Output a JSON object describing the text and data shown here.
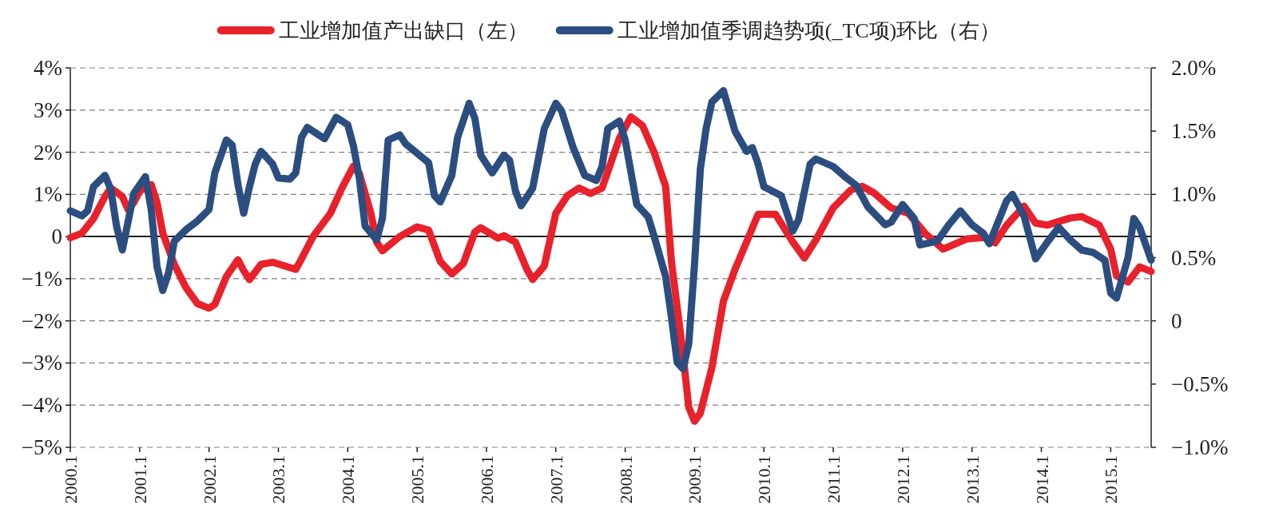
{
  "chart_data": {
    "type": "line",
    "legend": "top",
    "grid": "y",
    "line_style": "solid",
    "marker": "none",
    "xlim": [
      "2000-01",
      "2015-08"
    ],
    "xticks": [
      {
        "value": "2000-01",
        "label": "2000.1"
      },
      {
        "value": "2001-01",
        "label": "2001.1"
      },
      {
        "value": "2002-01",
        "label": "2002.1"
      },
      {
        "value": "2003-01",
        "label": "2003.1"
      },
      {
        "value": "2004-01",
        "label": "2004.1"
      },
      {
        "value": "2005-01",
        "label": "2005.1"
      },
      {
        "value": "2006-01",
        "label": "2006.1"
      },
      {
        "value": "2007-01",
        "label": "2007.1"
      },
      {
        "value": "2008-01",
        "label": "2008.1"
      },
      {
        "value": "2009-01",
        "label": "2009.1"
      },
      {
        "value": "2010-01",
        "label": "2010.1"
      },
      {
        "value": "2011-01",
        "label": "2011.1"
      },
      {
        "value": "2012-01",
        "label": "2012.1"
      },
      {
        "value": "2013-01",
        "label": "2013.1"
      },
      {
        "value": "2014-01",
        "label": "2014.1"
      },
      {
        "value": "2015-01",
        "label": "2015.1"
      }
    ],
    "ylim": [
      -5,
      4
    ],
    "yticks": [
      {
        "value": -5,
        "label": "−5%"
      },
      {
        "value": -4,
        "label": "−4%"
      },
      {
        "value": -3,
        "label": "−3%"
      },
      {
        "value": -2,
        "label": "−2%"
      },
      {
        "value": -1,
        "label": "−1%"
      },
      {
        "value": 0,
        "label": "0"
      },
      {
        "value": 1,
        "label": "1%"
      },
      {
        "value": 2,
        "label": "2%"
      },
      {
        "value": 3,
        "label": "3%"
      },
      {
        "value": 4,
        "label": "4%"
      }
    ],
    "y2lim": [
      -1,
      2
    ],
    "y2ticks": [
      {
        "value": -1,
        "label": "−1.0%"
      },
      {
        "value": -0.5,
        "label": "−0.5%"
      },
      {
        "value": 0,
        "label": "0"
      },
      {
        "value": 0.5,
        "label": "0.5%"
      },
      {
        "value": 1,
        "label": "1.0%"
      },
      {
        "value": 1.5,
        "label": "1.5%"
      },
      {
        "value": 2,
        "label": "2.0%"
      }
    ],
    "ref_lines": [
      {
        "axis": "y",
        "value": 0,
        "color": "#231f20",
        "line_style": "solid"
      }
    ],
    "series": [
      {
        "name": "工业增加值产出缺口（左）",
        "color": "#e8212b",
        "x": [
          "2000-01",
          "2000-03",
          "2000-05",
          "2000-07",
          "2000-08",
          "2000-10",
          "2000-11",
          "2000-12",
          "2001-01",
          "2001-03",
          "2001-04",
          "2001-05",
          "2001-07",
          "2001-09",
          "2001-11",
          "2002-01",
          "2002-02",
          "2002-04",
          "2002-06",
          "2002-07",
          "2002-08",
          "2002-10",
          "2002-12",
          "2003-04",
          "2003-05",
          "2003-07",
          "2003-10",
          "2003-12",
          "2004-02",
          "2004-03",
          "2004-05",
          "2004-06",
          "2004-07",
          "2004-10",
          "2005-01",
          "2005-03",
          "2005-05",
          "2005-07",
          "2005-09",
          "2005-11",
          "2005-12",
          "2006-03",
          "2006-04",
          "2006-06",
          "2006-08",
          "2006-09",
          "2006-11",
          "2007-01",
          "2007-03",
          "2007-05",
          "2007-07",
          "2007-09",
          "2007-12",
          "2008-02",
          "2008-04",
          "2008-06",
          "2008-08",
          "2008-09",
          "2008-11",
          "2008-12",
          "2009-01",
          "2009-02",
          "2009-04",
          "2009-06",
          "2009-08",
          "2009-10",
          "2009-12",
          "2010-03",
          "2010-06",
          "2010-08",
          "2010-10",
          "2011-01",
          "2011-04",
          "2011-06",
          "2011-08",
          "2011-11",
          "2012-02",
          "2012-05",
          "2012-08",
          "2012-12",
          "2013-03",
          "2013-05",
          "2013-07",
          "2013-10",
          "2013-12",
          "2014-02",
          "2014-06",
          "2014-08",
          "2014-11",
          "2015-01",
          "2015-02",
          "2015-04",
          "2015-06",
          "2015-08"
        ],
        "values": [
          -0.03,
          0.08,
          0.42,
          0.95,
          1.15,
          0.95,
          0.64,
          0.81,
          1.08,
          1.23,
          0.81,
          0.08,
          -0.66,
          -1.21,
          -1.59,
          -1.7,
          -1.61,
          -0.95,
          -0.55,
          -0.81,
          -1.02,
          -0.66,
          -0.61,
          -0.78,
          -0.53,
          0,
          0.55,
          1.15,
          1.67,
          1.5,
          0.55,
          -0.13,
          -0.34,
          0,
          0.23,
          0.15,
          -0.59,
          -0.89,
          -0.64,
          0.11,
          0.21,
          -0.04,
          0.02,
          -0.13,
          -0.78,
          -1.02,
          -0.7,
          0.55,
          0.97,
          1.15,
          1.02,
          1.15,
          2.33,
          2.84,
          2.63,
          2.0,
          1.19,
          -0.59,
          -2.78,
          -4.05,
          -4.38,
          -4.19,
          -3.11,
          -1.53,
          -0.78,
          -0.13,
          0.53,
          0.53,
          -0.13,
          -0.51,
          -0.08,
          0.68,
          1.1,
          1.19,
          1.04,
          0.68,
          0.55,
          0.06,
          -0.3,
          -0.06,
          -0.02,
          -0.15,
          0.27,
          0.72,
          0.32,
          0.27,
          0.44,
          0.47,
          0.27,
          -0.3,
          -0.93,
          -1.08,
          -0.72,
          -0.83
        ]
      },
      {
        "name": "工业增加值季调趋势项(_TC项)环比（右）",
        "color": "#2c4d80",
        "axis": "y2",
        "x": [
          "2000-01",
          "2000-03",
          "2000-04",
          "2000-05",
          "2000-07",
          "2000-08",
          "2000-09",
          "2000-10",
          "2000-12",
          "2001-02",
          "2001-03",
          "2001-04",
          "2001-05",
          "2001-06",
          "2001-07",
          "2001-09",
          "2001-11",
          "2002-01",
          "2002-02",
          "2002-04",
          "2002-05",
          "2002-06",
          "2002-07",
          "2002-08",
          "2002-09",
          "2002-10",
          "2002-12",
          "2003-01",
          "2003-03",
          "2003-04",
          "2003-05",
          "2003-06",
          "2003-09",
          "2003-11",
          "2004-01",
          "2004-02",
          "2004-03",
          "2004-04",
          "2004-06",
          "2004-07",
          "2004-08",
          "2004-10",
          "2004-11",
          "2005-03",
          "2005-04",
          "2005-05",
          "2005-07",
          "2005-08",
          "2005-10",
          "2005-11",
          "2005-12",
          "2006-02",
          "2006-04",
          "2006-05",
          "2006-06",
          "2006-07",
          "2006-09",
          "2006-11",
          "2007-01",
          "2007-02",
          "2007-04",
          "2007-06",
          "2007-08",
          "2007-09",
          "2007-10",
          "2007-12",
          "2008-01",
          "2008-03",
          "2008-05",
          "2008-06",
          "2008-08",
          "2008-09",
          "2008-10",
          "2008-11",
          "2008-12",
          "2009-01",
          "2009-02",
          "2009-03",
          "2009-04",
          "2009-06",
          "2009-07",
          "2009-08",
          "2009-10",
          "2009-11",
          "2009-12",
          "2010-01",
          "2010-04",
          "2010-06",
          "2010-07",
          "2010-09",
          "2010-10",
          "2011-01",
          "2011-03",
          "2011-05",
          "2011-07",
          "2011-10",
          "2011-11",
          "2012-01",
          "2012-03",
          "2012-04",
          "2012-07",
          "2012-09",
          "2012-11",
          "2013-01",
          "2013-03",
          "2013-04",
          "2013-07",
          "2013-08",
          "2013-10",
          "2013-12",
          "2014-02",
          "2014-04",
          "2014-06",
          "2014-08",
          "2014-10",
          "2014-12",
          "2015-01",
          "2015-02",
          "2015-04",
          "2015-05",
          "2015-06",
          "2015-08"
        ],
        "values": [
          0.87,
          0.83,
          0.87,
          1.06,
          1.15,
          1.04,
          0.75,
          0.56,
          1.01,
          1.14,
          0.88,
          0.43,
          0.24,
          0.38,
          0.63,
          0.72,
          0.79,
          0.88,
          1.17,
          1.43,
          1.39,
          1.08,
          0.85,
          1.06,
          1.24,
          1.34,
          1.24,
          1.13,
          1.12,
          1.17,
          1.45,
          1.53,
          1.44,
          1.61,
          1.55,
          1.38,
          1.13,
          0.75,
          0.64,
          0.81,
          1.43,
          1.47,
          1.4,
          1.25,
          0.99,
          0.94,
          1.15,
          1.45,
          1.72,
          1.6,
          1.31,
          1.17,
          1.31,
          1.27,
          1.03,
          0.91,
          1.05,
          1.52,
          1.72,
          1.66,
          1.37,
          1.15,
          1.11,
          1.22,
          1.52,
          1.58,
          1.43,
          0.92,
          0.82,
          0.67,
          0.35,
          0.03,
          -0.33,
          -0.38,
          -0.18,
          0.45,
          1.2,
          1.52,
          1.73,
          1.82,
          1.66,
          1.5,
          1.34,
          1.37,
          1.24,
          1.06,
          0.99,
          0.71,
          0.8,
          1.24,
          1.28,
          1.22,
          1.14,
          1.07,
          0.9,
          0.76,
          0.78,
          0.92,
          0.81,
          0.6,
          0.63,
          0.76,
          0.87,
          0.76,
          0.69,
          0.61,
          0.95,
          1.0,
          0.83,
          0.49,
          0.62,
          0.74,
          0.64,
          0.56,
          0.54,
          0.48,
          0.22,
          0.18,
          0.5,
          0.81,
          0.74,
          0.48
        ]
      }
    ]
  }
}
